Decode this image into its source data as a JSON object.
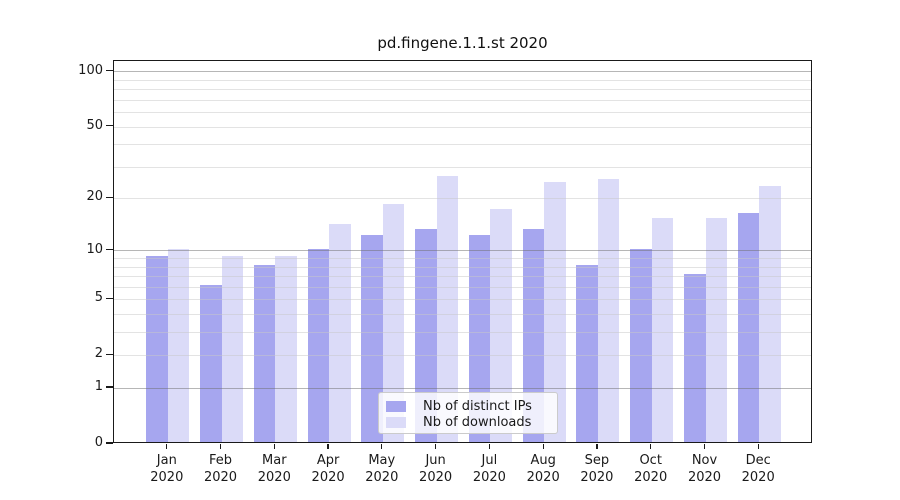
{
  "chart_data": {
    "type": "bar",
    "title": "pd.fingene.1.1.st 2020",
    "x_tick_labels": [
      [
        "Jan",
        "2020"
      ],
      [
        "Feb",
        "2020"
      ],
      [
        "Mar",
        "2020"
      ],
      [
        "Apr",
        "2020"
      ],
      [
        "May",
        "2020"
      ],
      [
        "Jun",
        "2020"
      ],
      [
        "Jul",
        "2020"
      ],
      [
        "Aug",
        "2020"
      ],
      [
        "Sep",
        "2020"
      ],
      [
        "Oct",
        "2020"
      ],
      [
        "Nov",
        "2020"
      ],
      [
        "Dec",
        "2020"
      ]
    ],
    "series": [
      {
        "name": "Nb of distinct IPs",
        "color": "#a6a6ef",
        "values": [
          9,
          6,
          8,
          10,
          12,
          13,
          12,
          13,
          8,
          10,
          7,
          16
        ]
      },
      {
        "name": "Nb of downloads",
        "color": "#dbdbf8",
        "values": [
          10,
          9,
          9,
          14,
          18,
          26,
          17,
          24,
          25,
          15,
          15,
          23
        ]
      }
    ],
    "y_tick_values": [
      0,
      1,
      2,
      5,
      10,
      20,
      50,
      100
    ],
    "major_gridlines": [
      1,
      10,
      100
    ],
    "minor_gridlines": [
      2,
      3,
      4,
      5,
      6,
      7,
      8,
      9,
      20,
      30,
      40,
      50,
      60,
      70,
      80,
      90
    ],
    "scale": "log10(1+y)",
    "ylim": [
      0,
      114
    ],
    "grid": true,
    "legend_position": "lower center"
  }
}
